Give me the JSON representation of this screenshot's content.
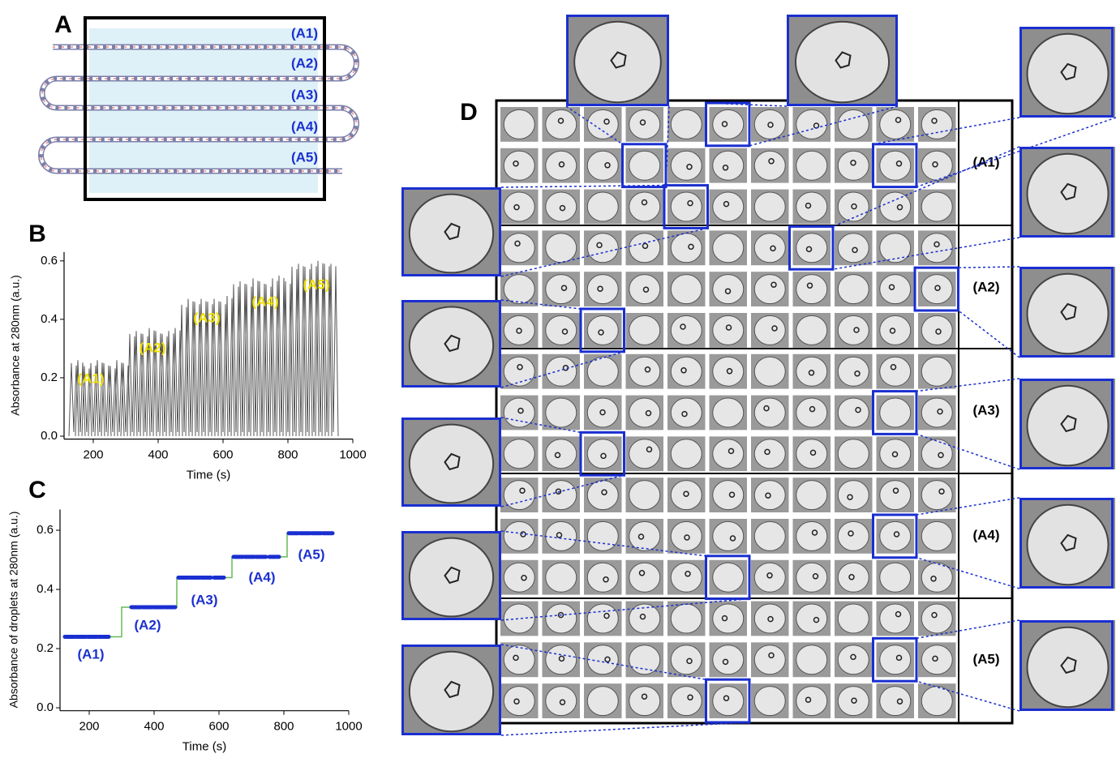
{
  "panel_labels": [
    "A",
    "B",
    "C",
    "D"
  ],
  "diagram": {
    "labels": [
      "(A1)",
      "(A2)",
      "(A3)",
      "(A4)",
      "(A5)"
    ]
  },
  "chart_data": [
    {
      "type": "bar",
      "xlabel": "Time (s)",
      "ylabel": "Absorbance at 280nm (a.u.)",
      "color": "#555555",
      "x": [
        140,
        160,
        180,
        200,
        220,
        240,
        260,
        280,
        300,
        320,
        340,
        360,
        380,
        400,
        420,
        440,
        460,
        480,
        500,
        520,
        540,
        560,
        580,
        600,
        620,
        640,
        660,
        680,
        700,
        720,
        740,
        760,
        780,
        800,
        820,
        840,
        860,
        880,
        900,
        920,
        940
      ],
      "values": [
        0.25,
        0.26,
        0.24,
        0.25,
        0.26,
        0.25,
        0.24,
        0.26,
        0.25,
        0.35,
        0.36,
        0.35,
        0.37,
        0.36,
        0.35,
        0.36,
        0.37,
        0.45,
        0.47,
        0.46,
        0.47,
        0.46,
        0.47,
        0.46,
        0.48,
        0.52,
        0.53,
        0.52,
        0.54,
        0.53,
        0.52,
        0.54,
        0.55,
        0.53,
        0.58,
        0.59,
        0.58,
        0.59,
        0.6,
        0.59,
        0.59
      ],
      "xlim": [
        110,
        1000
      ],
      "ylim": [
        -0.01,
        0.63
      ],
      "xticks": [
        200,
        400,
        600,
        800,
        1000
      ],
      "yticks": [
        {
          "value": 0,
          "label": "0.0"
        },
        {
          "value": 0.2,
          "label": "0.2"
        },
        {
          "value": 0.4,
          "label": "0.4"
        },
        {
          "value": 0.6,
          "label": "0.6"
        }
      ],
      "annotations": [
        "(A1)",
        "(A2)",
        "(A3)",
        "(A4)",
        "(A5)"
      ],
      "annotation_color": "#f0e000"
    },
    {
      "type": "scatter",
      "xlabel": "Time (s)",
      "ylabel": "Absorbance of droplets at 280nm (a.u.)",
      "series": [
        {
          "color": "#66bb55",
          "marker": "line",
          "x": [
            130,
            300,
            300,
            470,
            470,
            640,
            640,
            810,
            810,
            950
          ],
          "values": [
            0.24,
            0.24,
            0.34,
            0.34,
            0.44,
            0.44,
            0.51,
            0.51,
            0.59,
            0.59
          ]
        },
        {
          "color": "#1a2fd0",
          "marker": "dash",
          "x": [
            140,
            175,
            210,
            245,
            345,
            380,
            415,
            450,
            490,
            525,
            560,
            600,
            660,
            695,
            730,
            770,
            830,
            865,
            900,
            935
          ],
          "values": [
            0.24,
            0.24,
            0.24,
            0.24,
            0.34,
            0.34,
            0.34,
            0.34,
            0.44,
            0.44,
            0.44,
            0.44,
            0.51,
            0.51,
            0.51,
            0.51,
            0.59,
            0.59,
            0.59,
            0.59
          ]
        }
      ],
      "xlim": [
        110,
        1000
      ],
      "ylim": [
        -0.01,
        0.67
      ],
      "xticks": [
        200,
        400,
        600,
        800,
        1000
      ],
      "yticks": [
        {
          "value": 0,
          "label": "0.0"
        },
        {
          "value": 0.2,
          "label": "0.2"
        },
        {
          "value": 0.4,
          "label": "0.4"
        },
        {
          "value": 0.6,
          "label": "0.6"
        }
      ],
      "annotations": [
        "(A1)",
        "(A2)",
        "(A3)",
        "(A4)",
        "(A5)"
      ],
      "annotation_color": "#1a2fd0"
    }
  ],
  "grid": {
    "group_labels": [
      "(A1)",
      "(A2)",
      "(A3)",
      "(A4)",
      "(A5)"
    ]
  }
}
